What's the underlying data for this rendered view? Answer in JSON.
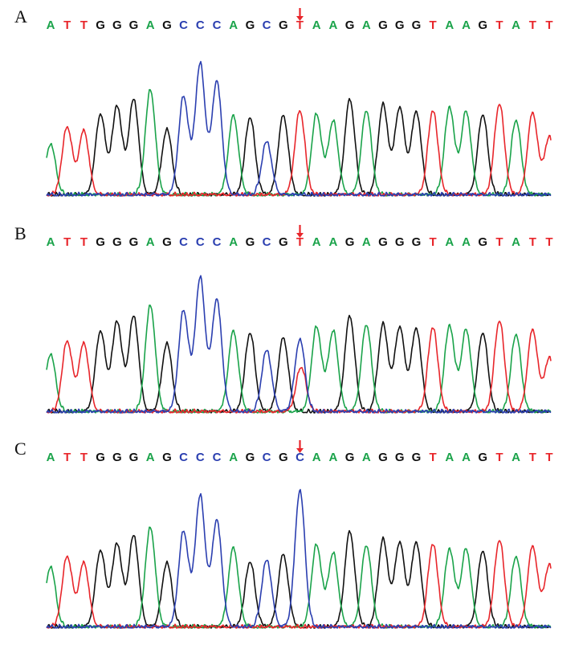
{
  "figure": {
    "colors": {
      "A": "#1aa34a",
      "C": "#2b3fb0",
      "G": "#111111",
      "T": "#e8262b",
      "arrow": "#e8262b"
    },
    "panels": [
      {
        "label": "A",
        "sequence": [
          "A",
          "T",
          "T",
          "G",
          "G",
          "G",
          "A",
          "G",
          "C",
          "C",
          "C",
          "A",
          "G",
          "C",
          "G",
          "T",
          "A",
          "A",
          "G",
          "A",
          "G",
          "G",
          "G",
          "T",
          "A",
          "A",
          "G",
          "T",
          "A",
          "T",
          "T"
        ],
        "arrow_index": 15,
        "peaks": [
          {
            "base": "A",
            "h": 0.37
          },
          {
            "base": "T",
            "h": 0.5
          },
          {
            "base": "T",
            "h": 0.47
          },
          {
            "base": "G",
            "h": 0.59
          },
          {
            "base": "G",
            "h": 0.65
          },
          {
            "base": "G",
            "h": 0.7
          },
          {
            "base": "A",
            "h": 0.77
          },
          {
            "base": "G",
            "h": 0.48
          },
          {
            "base": "C",
            "h": 0.72
          },
          {
            "base": "C",
            "h": 0.96
          },
          {
            "base": "C",
            "h": 0.83
          },
          {
            "base": "A",
            "h": 0.58
          },
          {
            "base": "G",
            "h": 0.57
          },
          {
            "base": "C",
            "h": 0.39
          },
          {
            "base": "G",
            "h": 0.58
          },
          {
            "base": "T",
            "h": 0.62
          },
          {
            "base": "A",
            "h": 0.59
          },
          {
            "base": "A",
            "h": 0.54
          },
          {
            "base": "G",
            "h": 0.7
          },
          {
            "base": "A",
            "h": 0.62
          },
          {
            "base": "G",
            "h": 0.66
          },
          {
            "base": "G",
            "h": 0.64
          },
          {
            "base": "G",
            "h": 0.61
          },
          {
            "base": "T",
            "h": 0.62
          },
          {
            "base": "A",
            "h": 0.64
          },
          {
            "base": "A",
            "h": 0.61
          },
          {
            "base": "G",
            "h": 0.59
          },
          {
            "base": "T",
            "h": 0.67
          },
          {
            "base": "A",
            "h": 0.55
          },
          {
            "base": "T",
            "h": 0.6
          },
          {
            "base": "T",
            "h": 0.42
          }
        ]
      },
      {
        "label": "B",
        "sequence": [
          "A",
          "T",
          "T",
          "G",
          "G",
          "G",
          "A",
          "G",
          "C",
          "C",
          "C",
          "A",
          "G",
          "C",
          "G",
          "T",
          "A",
          "A",
          "G",
          "A",
          "G",
          "G",
          "G",
          "T",
          "A",
          "A",
          "G",
          "T",
          "A",
          "T",
          "T"
        ],
        "arrow_index": 15,
        "peaks": [
          {
            "base": "A",
            "h": 0.42
          },
          {
            "base": "T",
            "h": 0.52
          },
          {
            "base": "T",
            "h": 0.5
          },
          {
            "base": "G",
            "h": 0.59
          },
          {
            "base": "G",
            "h": 0.66
          },
          {
            "base": "G",
            "h": 0.7
          },
          {
            "base": "A",
            "h": 0.78
          },
          {
            "base": "G",
            "h": 0.5
          },
          {
            "base": "C",
            "h": 0.74
          },
          {
            "base": "C",
            "h": 0.98
          },
          {
            "base": "C",
            "h": 0.82
          },
          {
            "base": "A",
            "h": 0.59
          },
          {
            "base": "G",
            "h": 0.58
          },
          {
            "base": "C",
            "h": 0.45
          },
          {
            "base": "G",
            "h": 0.54
          },
          {
            "base": "C",
            "h": 0.53,
            "dual": {
              "base": "T",
              "h": 0.33
            }
          },
          {
            "base": "A",
            "h": 0.62
          },
          {
            "base": "A",
            "h": 0.59
          },
          {
            "base": "G",
            "h": 0.7
          },
          {
            "base": "A",
            "h": 0.64
          },
          {
            "base": "G",
            "h": 0.64
          },
          {
            "base": "G",
            "h": 0.62
          },
          {
            "base": "G",
            "h": 0.61
          },
          {
            "base": "T",
            "h": 0.62
          },
          {
            "base": "A",
            "h": 0.63
          },
          {
            "base": "A",
            "h": 0.6
          },
          {
            "base": "G",
            "h": 0.58
          },
          {
            "base": "T",
            "h": 0.67
          },
          {
            "base": "A",
            "h": 0.57
          },
          {
            "base": "T",
            "h": 0.6
          },
          {
            "base": "T",
            "h": 0.39
          }
        ]
      },
      {
        "label": "C",
        "sequence": [
          "A",
          "T",
          "T",
          "G",
          "G",
          "G",
          "A",
          "G",
          "C",
          "C",
          "C",
          "A",
          "G",
          "C",
          "G",
          "C",
          "A",
          "A",
          "G",
          "A",
          "G",
          "G",
          "G",
          "T",
          "A",
          "A",
          "G",
          "T",
          "A",
          "T",
          "T"
        ],
        "arrow_index": 15,
        "peaks": [
          {
            "base": "A",
            "h": 0.44
          },
          {
            "base": "T",
            "h": 0.52
          },
          {
            "base": "T",
            "h": 0.47
          },
          {
            "base": "G",
            "h": 0.56
          },
          {
            "base": "G",
            "h": 0.61
          },
          {
            "base": "G",
            "h": 0.67
          },
          {
            "base": "A",
            "h": 0.73
          },
          {
            "base": "G",
            "h": 0.47
          },
          {
            "base": "C",
            "h": 0.7
          },
          {
            "base": "C",
            "h": 0.96
          },
          {
            "base": "C",
            "h": 0.78
          },
          {
            "base": "A",
            "h": 0.58
          },
          {
            "base": "G",
            "h": 0.48
          },
          {
            "base": "C",
            "h": 0.49
          },
          {
            "base": "G",
            "h": 0.53
          },
          {
            "base": "C",
            "h": 1.0
          },
          {
            "base": "A",
            "h": 0.6
          },
          {
            "base": "A",
            "h": 0.54
          },
          {
            "base": "G",
            "h": 0.7
          },
          {
            "base": "A",
            "h": 0.6
          },
          {
            "base": "G",
            "h": 0.64
          },
          {
            "base": "G",
            "h": 0.62
          },
          {
            "base": "G",
            "h": 0.62
          },
          {
            "base": "T",
            "h": 0.61
          },
          {
            "base": "A",
            "h": 0.57
          },
          {
            "base": "A",
            "h": 0.57
          },
          {
            "base": "G",
            "h": 0.56
          },
          {
            "base": "T",
            "h": 0.64
          },
          {
            "base": "A",
            "h": 0.52
          },
          {
            "base": "T",
            "h": 0.59
          },
          {
            "base": "T",
            "h": 0.45
          }
        ]
      }
    ]
  }
}
